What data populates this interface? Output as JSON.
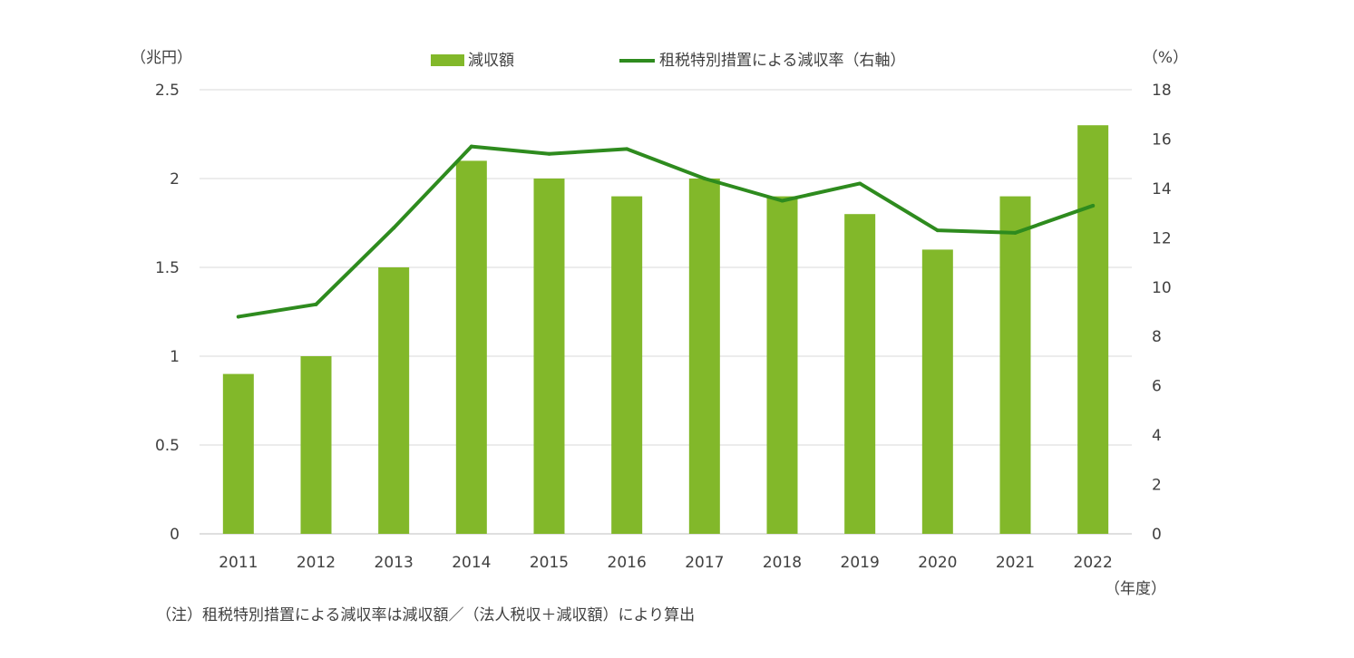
{
  "chart_data": {
    "type": "bar",
    "categories": [
      "2011",
      "2012",
      "2013",
      "2014",
      "2015",
      "2016",
      "2017",
      "2018",
      "2019",
      "2020",
      "2021",
      "2022"
    ],
    "series": [
      {
        "name": "減収額",
        "type": "bar",
        "axis": "left",
        "color": "#82b82a",
        "values": [
          0.9,
          1.0,
          1.5,
          2.1,
          2.0,
          1.9,
          2.0,
          1.9,
          1.8,
          1.6,
          1.9,
          2.3
        ]
      },
      {
        "name": "租税特別措置による減収率（右軸）",
        "type": "line",
        "axis": "right",
        "color": "#2e8b1e",
        "values": [
          8.8,
          9.3,
          12.4,
          15.7,
          15.4,
          15.6,
          14.4,
          13.5,
          14.2,
          12.3,
          12.2,
          13.3
        ]
      }
    ],
    "left_axis": {
      "unit": "（兆円）",
      "min": 0,
      "max": 2.5,
      "ticks": [
        "0",
        "0.5",
        "1",
        "1.5",
        "2",
        "2.5"
      ]
    },
    "right_axis": {
      "unit": "（%）",
      "min": 0,
      "max": 18,
      "ticks": [
        "0",
        "2",
        "4",
        "6",
        "8",
        "10",
        "12",
        "14",
        "16",
        "18"
      ]
    },
    "x_unit": "（年度）",
    "grid": true,
    "legend_position": "top",
    "note": "（注）租税特別措置による減収率は減収額／（法人税収＋減収額）により算出"
  }
}
